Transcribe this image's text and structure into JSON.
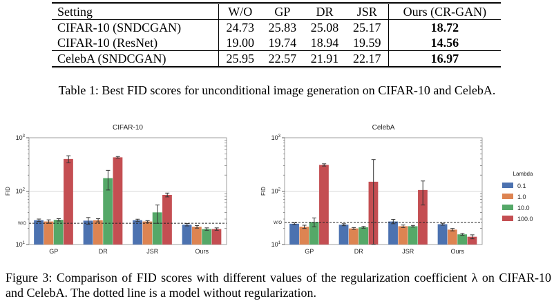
{
  "table": {
    "headers": [
      "Setting",
      "W/O",
      "GP",
      "DR",
      "JSR",
      "Ours (CR-GAN)"
    ],
    "rows": [
      {
        "setting": "CIFAR-10 (SNDCGAN)",
        "values": [
          "24.73",
          "25.83",
          "25.08",
          "25.17",
          "18.72"
        ]
      },
      {
        "setting": "CIFAR-10 (ResNet)",
        "values": [
          "19.00",
          "19.74",
          "18.94",
          "19.59",
          "14.56"
        ]
      },
      {
        "setting": "CelebA (SNDCGAN)",
        "values": [
          "25.95",
          "22.57",
          "21.91",
          "22.17",
          "16.97"
        ]
      }
    ],
    "caption": "Table 1: Best FID scores for unconditional image generation on CIFAR-10 and CelebA."
  },
  "chart_data": [
    {
      "type": "bar",
      "title": "CIFAR-10",
      "ylabel": "FID",
      "yscale": "log",
      "ylim": [
        10,
        1000
      ],
      "categories": [
        "GP",
        "DR",
        "JSR",
        "Ours"
      ],
      "reference_line": {
        "label": "W/O",
        "value": 25,
        "style": "dotted"
      },
      "legend": {
        "title": "Lambda",
        "placement": "right"
      },
      "series": [
        {
          "name": "0.1",
          "color": "#4c72b0",
          "values": [
            28.5,
            28.0,
            28.5,
            23.5
          ],
          "err": [
            1.5,
            4.0,
            1.3,
            1.2
          ]
        },
        {
          "name": "1.0",
          "color": "#dd8452",
          "values": [
            27.0,
            28.5,
            27.0,
            21.5
          ],
          "err": [
            2.0,
            2.0,
            1.0,
            1.2
          ]
        },
        {
          "name": "10.0",
          "color": "#55a868",
          "values": [
            29.0,
            175.0,
            40.0,
            19.5
          ],
          "err": [
            1.5,
            70.0,
            15.0,
            1.0
          ]
        },
        {
          "name": "100.0",
          "color": "#c44e52",
          "values": [
            400.0,
            430.0,
            85.0,
            19.5
          ],
          "err": [
            60.0,
            15.0,
            7.0,
            1.0
          ]
        }
      ]
    },
    {
      "type": "bar",
      "title": "CelebA",
      "ylabel": "FID",
      "yscale": "log",
      "ylim": [
        10,
        1000
      ],
      "categories": [
        "GP",
        "DR",
        "JSR",
        "Ours"
      ],
      "reference_line": {
        "label": "W/O",
        "value": 26,
        "style": "dotted"
      },
      "legend": {
        "title": "Lambda",
        "placement": "right"
      },
      "series": [
        {
          "name": "0.1",
          "color": "#4c72b0",
          "values": [
            24.5,
            23.5,
            27.0,
            24.0
          ],
          "err": [
            1.0,
            1.0,
            2.5,
            1.0
          ]
        },
        {
          "name": "1.0",
          "color": "#dd8452",
          "values": [
            21.5,
            20.0,
            22.0,
            19.0
          ],
          "err": [
            1.5,
            0.8,
            1.2,
            1.0
          ]
        },
        {
          "name": "10.0",
          "color": "#55a868",
          "values": [
            26.5,
            21.0,
            22.0,
            15.5
          ],
          "err": [
            5.0,
            0.8,
            0.8,
            0.6
          ]
        },
        {
          "name": "100.0",
          "color": "#c44e52",
          "values": [
            310.0,
            150.0,
            105.0,
            14.0
          ],
          "err": [
            15.0,
            240.0,
            50.0,
            1.2
          ]
        }
      ]
    }
  ],
  "figure_caption": "Figure 3:  Comparison of FID scores with different values of the regularization coefficient λ on CIFAR-10 and CelebA. The dotted line is a model without regularization."
}
